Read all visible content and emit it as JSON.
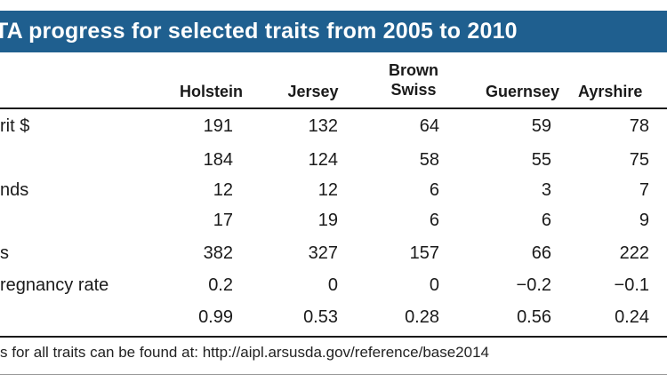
{
  "title": "TA progress for selected traits from 2005 to 2010",
  "columns": [
    "Holstein",
    "Jersey",
    "Brown Swiss",
    "Guernsey",
    "Ayrshire"
  ],
  "column_lines": [
    [
      "Holstein"
    ],
    [
      "Jersey"
    ],
    [
      "Brown",
      "Swiss"
    ],
    [
      "Guernsey"
    ],
    [
      "Ayrshire"
    ]
  ],
  "rows": [
    {
      "label": "rit $",
      "values": [
        "191",
        "132",
        "64",
        "59",
        "78"
      ]
    },
    {
      "label": "",
      "values": [
        "184",
        "124",
        "58",
        "55",
        "75"
      ]
    },
    {
      "label": "nds",
      "values": [
        "12",
        "12",
        "6",
        "3",
        "7"
      ]
    },
    {
      "label": "",
      "values": [
        "17",
        "19",
        "6",
        "6",
        "9"
      ]
    },
    {
      "label": "s",
      "values": [
        "382",
        "327",
        "157",
        "66",
        "222"
      ]
    },
    {
      "label": "regnancy rate",
      "values": [
        "0.2",
        "0",
        "0",
        "−0.2",
        "−0.1"
      ]
    },
    {
      "label": "",
      "values": [
        "0.99",
        "0.53",
        "0.28",
        "0.56",
        "0.24"
      ]
    }
  ],
  "footnote": "s for all traits can be found at: http://aipl.arsusda.gov/reference/base2014",
  "colors": {
    "title_bg": "#1f5f8f",
    "title_text": "#ffffff",
    "rule": "#1a1a1a"
  }
}
